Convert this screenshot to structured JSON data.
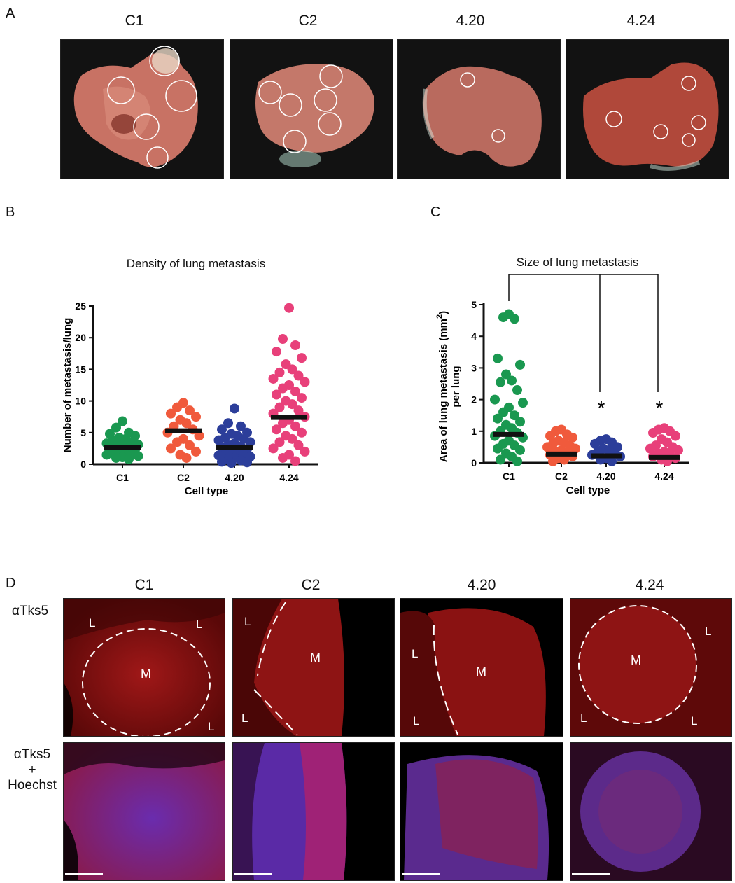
{
  "panels": {
    "A": {
      "letter": "A",
      "columns": [
        "C1",
        "C2",
        "4.20",
        "4.24"
      ]
    },
    "B": {
      "letter": "B"
    },
    "C": {
      "letter": "C"
    },
    "D": {
      "letter": "D",
      "columns": [
        "C1",
        "C2",
        "4.20",
        "4.24"
      ],
      "row_labels": {
        "top": "αTks5",
        "bottom_line1": "αTks5",
        "bottom_line2": "+",
        "bottom_line3": "Hoechst"
      },
      "region_labels": {
        "lung": "L",
        "metastasis": "M"
      }
    }
  },
  "colors": {
    "C1": "#1a9850",
    "C2": "#f05a3c",
    "4.20": "#2c3e9a",
    "4.24": "#e8407a",
    "mean_bar": "#111111",
    "tissue_red": "#b22222",
    "hoechst_blue": "#3a36b0"
  },
  "chart_data": [
    {
      "type": "scatter",
      "title": "Density of lung metastasis",
      "xlabel": "Cell type",
      "ylabel": "Number of metastasis/lung",
      "categories": [
        "C1",
        "C2",
        "4.20",
        "4.24"
      ],
      "ylim": [
        0,
        25
      ],
      "yticks": [
        0,
        5,
        10,
        15,
        20,
        25
      ],
      "grid": false,
      "series": [
        {
          "category": "C1",
          "mean": 2.7,
          "values": [
            6.8,
            5.8,
            5,
            4.8,
            4.5,
            4.2,
            4,
            3.8,
            3.5,
            3.3,
            3.1,
            3,
            2.8,
            2.6,
            2.5,
            2.3,
            2.1,
            2,
            1.8,
            1.6,
            1.5,
            1.3,
            1.1,
            1,
            0.8
          ]
        },
        {
          "category": "C2",
          "mean": 5.3,
          "values": [
            9.7,
            9,
            8.5,
            8,
            7.5,
            7,
            6.5,
            6,
            5.5,
            5,
            4.5,
            4,
            3.5,
            3,
            2.5,
            2,
            1.5,
            1
          ]
        },
        {
          "category": "4.20",
          "mean": 2.7,
          "values": [
            8.8,
            6.5,
            6,
            5.5,
            5,
            4.8,
            4.5,
            4.2,
            4,
            3.8,
            3.5,
            3.3,
            3,
            2.8,
            2.6,
            2.4,
            2.2,
            2,
            1.8,
            1.6,
            1.4,
            1.2,
            1,
            0.8,
            0.6,
            0.4,
            0.3,
            0.2
          ]
        },
        {
          "category": "4.24",
          "mean": 7.4,
          "values": [
            24.7,
            19.8,
            18.8,
            17.8,
            16.8,
            15.8,
            15,
            14.5,
            14,
            13.5,
            13,
            12.5,
            12,
            11.5,
            11,
            10.5,
            10,
            9.5,
            9,
            8.5,
            8,
            7.5,
            7,
            6.5,
            6,
            5.5,
            5,
            4.5,
            4,
            3.5,
            3,
            2.5,
            2,
            1.5,
            1,
            0.5
          ]
        }
      ]
    },
    {
      "type": "scatter",
      "title": "Size of lung metastasis",
      "xlabel": "Cell type",
      "ylabel_line1": "Area of lung metastasis (mm",
      "ylabel_sup": "2",
      "ylabel_close": ")",
      "ylabel_line2": "per lung",
      "categories": [
        "C1",
        "C2",
        "4.20",
        "4.24"
      ],
      "ylim": [
        0,
        5
      ],
      "yticks": [
        0,
        1,
        2,
        3,
        4,
        5
      ],
      "grid": false,
      "significance": {
        "marker": "*",
        "compared_to": "C1",
        "categories": [
          "4.20",
          "4.24"
        ]
      },
      "series": [
        {
          "category": "C1",
          "mean": 0.9,
          "values": [
            4.7,
            4.6,
            4.55,
            3.3,
            3.1,
            2.8,
            2.6,
            2.55,
            2.3,
            2.0,
            1.9,
            1.75,
            1.6,
            1.5,
            1.4,
            1.3,
            1.2,
            1.1,
            1.0,
            0.95,
            0.85,
            0.8,
            0.7,
            0.6,
            0.55,
            0.45,
            0.4,
            0.3,
            0.2,
            0.1,
            0.05
          ]
        },
        {
          "category": "C2",
          "mean": 0.28,
          "values": [
            1.05,
            1.0,
            0.9,
            0.85,
            0.8,
            0.7,
            0.65,
            0.6,
            0.55,
            0.5,
            0.45,
            0.4,
            0.35,
            0.3,
            0.25,
            0.2,
            0.15,
            0.1,
            0.05
          ]
        },
        {
          "category": "4.20",
          "mean": 0.22,
          "values": [
            0.75,
            0.7,
            0.65,
            0.6,
            0.5,
            0.45,
            0.4,
            0.35,
            0.3,
            0.25,
            0.2,
            0.15,
            0.1,
            0.05
          ]
        },
        {
          "category": "4.24",
          "mean": 0.17,
          "values": [
            1.1,
            1.05,
            1.0,
            0.95,
            0.85,
            0.75,
            0.65,
            0.55,
            0.5,
            0.45,
            0.4,
            0.35,
            0.3,
            0.25,
            0.2,
            0.15,
            0.1,
            0.05
          ]
        }
      ]
    }
  ]
}
